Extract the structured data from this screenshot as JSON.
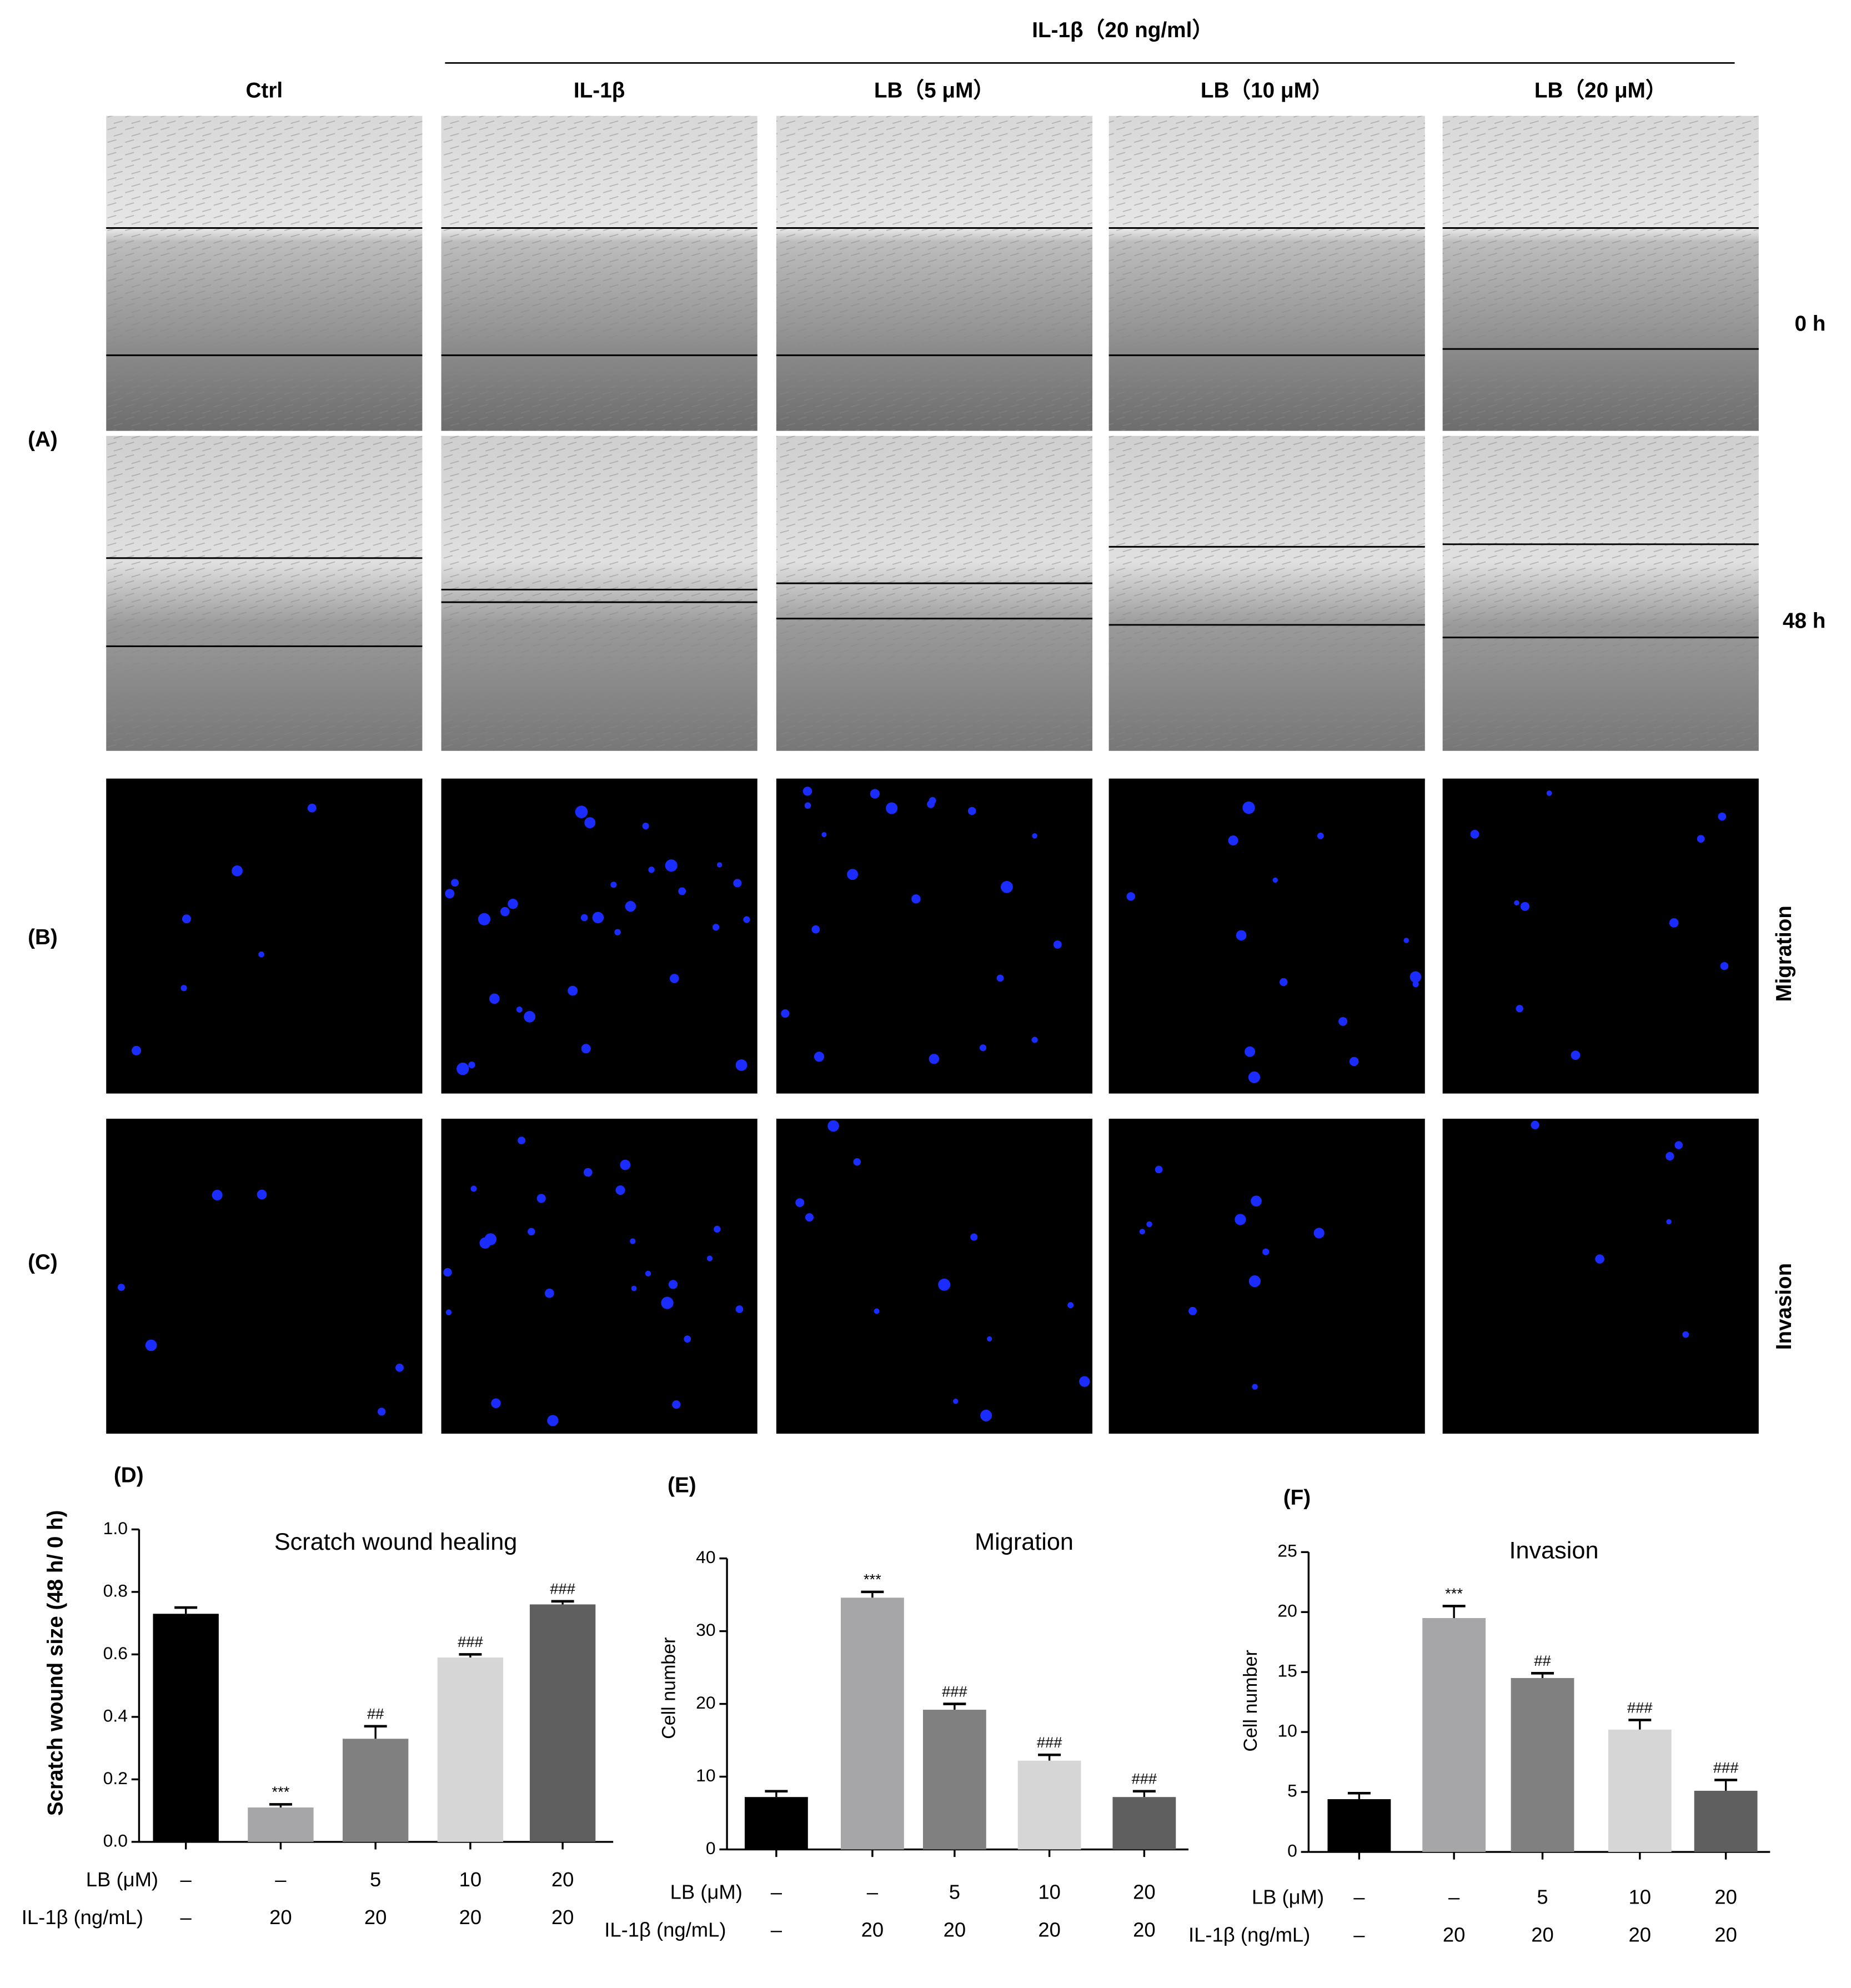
{
  "panels": {
    "group_label": "IL-1β（20 ng/ml）",
    "columns": [
      "Ctrl",
      "IL-1β",
      "LB（5 μM）",
      "LB（10 μM）",
      "LB（20 μM）"
    ],
    "row_labels": [
      "(A)",
      "(B)",
      "(C)"
    ],
    "time_labels": [
      "0 h",
      "48 h"
    ],
    "assay_labels": [
      "Migration",
      "Invasion"
    ]
  },
  "chart_data": [
    {
      "type": "bar",
      "panel": "(D)",
      "title": "Scratch wound healing",
      "y_label": "Scratch wound size (48 h/ 0 h)",
      "values": [
        0.73,
        0.11,
        0.33,
        0.59,
        0.76
      ],
      "errors": [
        0.02,
        0.01,
        0.04,
        0.01,
        0.01
      ],
      "annotations": [
        null,
        "***",
        "##",
        "###",
        "###"
      ],
      "colors": [
        "#000000",
        "#a6a6a8",
        "#808080",
        "#d6d6d6",
        "#5f5f5f"
      ],
      "ylim": [
        0,
        1.0
      ],
      "yticks": [
        {
          "value": 0,
          "label": "0.0"
        },
        0.2,
        0.4,
        0.6,
        0.8,
        {
          "value": 1.0,
          "label": "1.0"
        }
      ],
      "conditions": [
        {
          "name": "LB (μM)",
          "labels": [
            "–",
            "–",
            "5",
            "10",
            "20"
          ]
        },
        {
          "name": "IL-1β (ng/mL)",
          "labels": [
            "–",
            "20",
            "20",
            "20",
            "20"
          ]
        }
      ]
    },
    {
      "type": "bar",
      "panel": "(E)",
      "title": "Migration",
      "y_label": "Cell number",
      "values": [
        7.2,
        34.6,
        19.2,
        12.2,
        7.2
      ],
      "errors": [
        0.8,
        0.8,
        0.8,
        0.8,
        0.8
      ],
      "annotations": [
        null,
        "***",
        "###",
        "###",
        "###"
      ],
      "colors": [
        "#000000",
        "#a6a6a8",
        "#808080",
        "#d6d6d6",
        "#5f5f5f"
      ],
      "ylim": [
        0,
        40
      ],
      "yticks": [
        0,
        10,
        20,
        30,
        40
      ],
      "conditions": [
        {
          "name": "LB (μM)",
          "labels": [
            "–",
            "–",
            "5",
            "10",
            "20"
          ]
        },
        {
          "name": "IL-1β (ng/mL)",
          "labels": [
            "–",
            "20",
            "20",
            "20",
            "20"
          ]
        }
      ]
    },
    {
      "type": "bar",
      "panel": "(F)",
      "title": "Invasion",
      "y_label": "Cell number",
      "values": [
        4.4,
        19.5,
        14.5,
        10.2,
        5.1
      ],
      "errors": [
        0.5,
        1.0,
        0.4,
        0.8,
        0.9
      ],
      "annotations": [
        null,
        "***",
        "##",
        "###",
        "###"
      ],
      "colors": [
        "#000000",
        "#a6a6a8",
        "#808080",
        "#d6d6d6",
        "#5f5f5f"
      ],
      "ylim": [
        0,
        25
      ],
      "yticks": [
        0,
        5,
        10,
        15,
        20,
        25
      ],
      "conditions": [
        {
          "name": "LB (μM)",
          "labels": [
            "–",
            "–",
            "5",
            "10",
            "20"
          ]
        },
        {
          "name": "IL-1β (ng/mL)",
          "labels": [
            "–",
            "20",
            "20",
            "20",
            "20"
          ]
        }
      ]
    }
  ]
}
